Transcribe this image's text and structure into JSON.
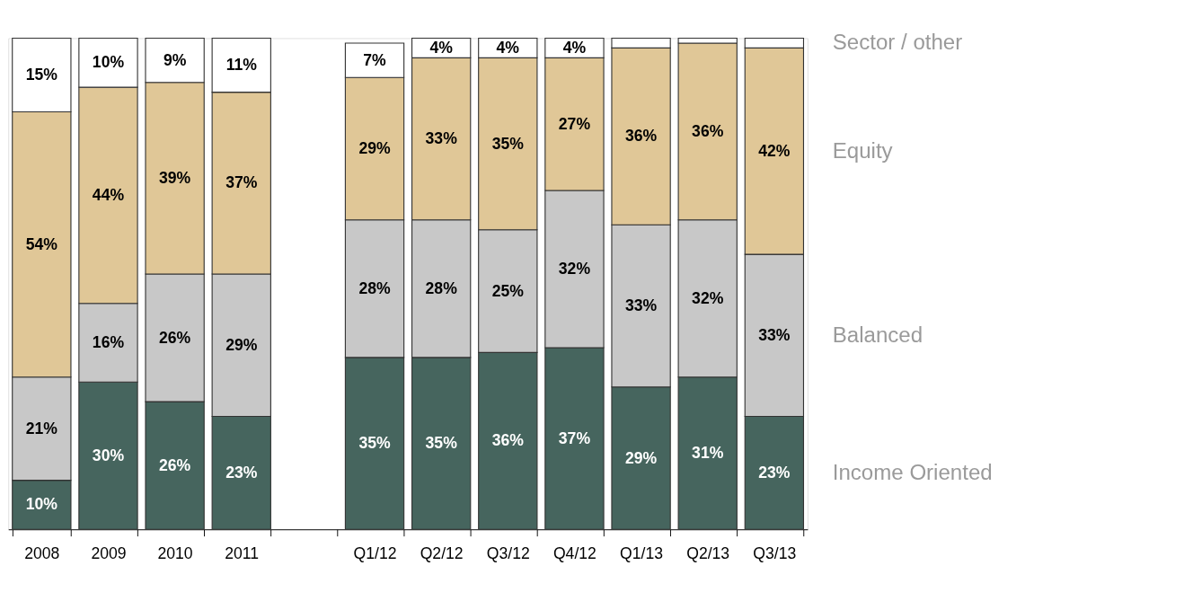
{
  "chart_data": {
    "type": "bar",
    "stacked": true,
    "categories": [
      "2008",
      "2009",
      "2010",
      "2011",
      null,
      "Q1/12",
      "Q2/12",
      "Q3/12",
      "Q4/12",
      "Q1/13",
      "Q2/13",
      "Q3/13"
    ],
    "ylim": [
      0,
      100
    ],
    "tick_labels": "x",
    "grid": false,
    "legend": "right",
    "series": [
      {
        "name": "Income Oriented",
        "color": "#46655e",
        "values": [
          10,
          30,
          26,
          23,
          null,
          35,
          35,
          36,
          37,
          29,
          31,
          23
        ],
        "value_labels": [
          "10%",
          "30%",
          "26%",
          "23%",
          null,
          "35%",
          "35%",
          "36%",
          "37%",
          "29%",
          "31%",
          "23%"
        ]
      },
      {
        "name": "Balanced",
        "color": "#c8c8c8",
        "values": [
          21,
          16,
          26,
          29,
          null,
          28,
          28,
          25,
          32,
          33,
          32,
          33
        ],
        "value_labels": [
          "21%",
          "16%",
          "26%",
          "29%",
          null,
          "28%",
          "28%",
          "25%",
          "32%",
          "33%",
          "32%",
          "33%"
        ]
      },
      {
        "name": "Equity",
        "color": "#e0c797",
        "values": [
          54,
          44,
          39,
          37,
          null,
          29,
          33,
          35,
          27,
          36,
          36,
          42
        ],
        "value_labels": [
          "54%",
          "44%",
          "39%",
          "37%",
          null,
          "29%",
          "33%",
          "35%",
          "27%",
          "36%",
          "36%",
          "42%"
        ]
      },
      {
        "name": "Sector / other",
        "color": "#ffffff",
        "values": [
          15,
          10,
          9,
          11,
          null,
          7,
          4,
          4,
          4,
          2,
          1,
          2
        ],
        "value_labels": [
          "15%",
          "10%",
          "9%",
          "11%",
          null,
          "7%",
          "4%",
          "4%",
          "4%",
          null,
          null,
          null
        ]
      }
    ]
  }
}
